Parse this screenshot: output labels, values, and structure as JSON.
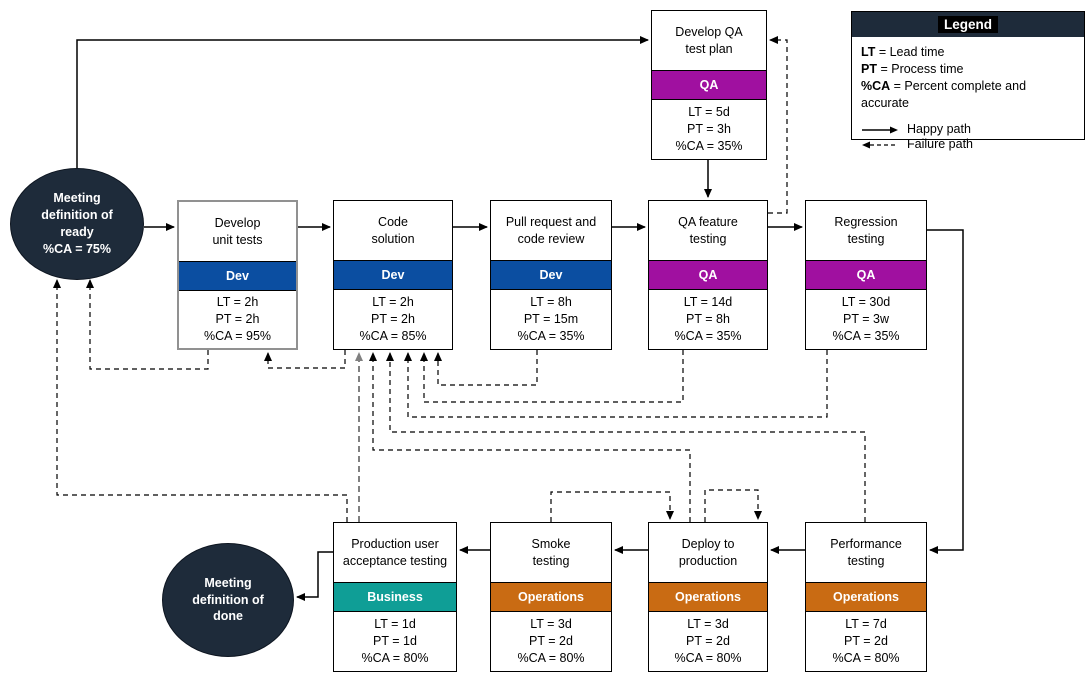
{
  "colors": {
    "dev": "#0B4EA1",
    "qa": "#A010A0",
    "operations": "#C96B13",
    "business": "#0F9E96",
    "navy": "#1E2B3A",
    "failure_gray": "#808080",
    "line_black": "#000000"
  },
  "legend": {
    "title": "Legend",
    "terms": [
      {
        "term": "LT",
        "def": " = Lead time"
      },
      {
        "term": "PT",
        "def": " = Process time"
      },
      {
        "term": "%CA",
        "def": " = Percent complete and accurate"
      }
    ],
    "paths": [
      {
        "label": "Happy path",
        "style": "solid"
      },
      {
        "label": "Failure path",
        "style": "dashed"
      }
    ]
  },
  "terminals": [
    {
      "id": "ready",
      "lines": [
        "Meeting definition of ready",
        "%CA = 75%"
      ]
    },
    {
      "id": "done",
      "lines": [
        "Meeting definition of done"
      ]
    }
  ],
  "processes": [
    {
      "id": "qa-test-plan",
      "title": "Develop QA\ntest plan",
      "team": "QA",
      "team_color": "qa",
      "stats": [
        "LT = 5d",
        "PT = 3h",
        "%CA = 35%"
      ]
    },
    {
      "id": "unit-tests",
      "title": "Develop\nunit tests",
      "team": "Dev",
      "team_color": "dev",
      "stats": [
        "LT = 2h",
        "PT = 2h",
        "%CA = 95%"
      ]
    },
    {
      "id": "code-solution",
      "title": "Code\nsolution",
      "team": "Dev",
      "team_color": "dev",
      "stats": [
        "LT = 2h",
        "PT = 2h",
        "%CA = 85%"
      ]
    },
    {
      "id": "pull-request",
      "title": "Pull request and\ncode review",
      "team": "Dev",
      "team_color": "dev",
      "stats": [
        "LT = 8h",
        "PT = 15m",
        "%CA = 35%"
      ]
    },
    {
      "id": "qa-feature",
      "title": "QA feature\ntesting",
      "team": "QA",
      "team_color": "qa",
      "stats": [
        "LT = 14d",
        "PT = 8h",
        "%CA = 35%"
      ]
    },
    {
      "id": "regression",
      "title": "Regression\ntesting",
      "team": "QA",
      "team_color": "qa",
      "stats": [
        "LT = 30d",
        "PT = 3w",
        "%CA = 35%"
      ]
    },
    {
      "id": "uat",
      "title": "Production user\nacceptance testing",
      "team": "Business",
      "team_color": "business",
      "stats": [
        "LT = 1d",
        "PT = 1d",
        "%CA = 80%"
      ]
    },
    {
      "id": "smoke",
      "title": "Smoke\ntesting",
      "team": "Operations",
      "team_color": "operations",
      "stats": [
        "LT = 3d",
        "PT = 2d",
        "%CA = 80%"
      ]
    },
    {
      "id": "deploy",
      "title": "Deploy to\nproduction",
      "team": "Operations",
      "team_color": "operations",
      "stats": [
        "LT = 3d",
        "PT = 2d",
        "%CA = 80%"
      ]
    },
    {
      "id": "performance",
      "title": "Performance\ntesting",
      "team": "Operations",
      "team_color": "operations",
      "stats": [
        "LT = 7d",
        "PT = 2d",
        "%CA = 80%"
      ]
    }
  ],
  "edges": [
    {
      "id": "h_ready_unit",
      "from": "ready",
      "to": "unit-tests",
      "type": "happy"
    },
    {
      "id": "h_unit_code",
      "from": "unit-tests",
      "to": "code-solution",
      "type": "happy"
    },
    {
      "id": "h_code_pr",
      "from": "code-solution",
      "to": "pull-request",
      "type": "happy"
    },
    {
      "id": "h_pr_qaf",
      "from": "pull-request",
      "to": "qa-feature",
      "type": "happy"
    },
    {
      "id": "h_qaf_reg",
      "from": "qa-feature",
      "to": "regression",
      "type": "happy"
    },
    {
      "id": "h_reg_perf",
      "from": "regression",
      "to": "performance",
      "type": "happy"
    },
    {
      "id": "h_perf_deploy",
      "from": "performance",
      "to": "deploy",
      "type": "happy"
    },
    {
      "id": "h_deploy_smoke",
      "from": "deploy",
      "to": "smoke",
      "type": "happy"
    },
    {
      "id": "h_smoke_uat",
      "from": "smoke",
      "to": "uat",
      "type": "happy"
    },
    {
      "id": "h_uat_done",
      "from": "uat",
      "to": "done",
      "type": "happy"
    },
    {
      "id": "h_ready_qaplan",
      "from": "ready",
      "to": "qa-test-plan",
      "type": "happy"
    },
    {
      "id": "h_qaplan_qaf",
      "from": "qa-test-plan",
      "to": "qa-feature",
      "type": "happy"
    },
    {
      "id": "f_qaf_qaplan",
      "from": "qa-feature",
      "to": "qa-test-plan",
      "type": "failure"
    },
    {
      "id": "f_unit_ready",
      "from": "unit-tests",
      "to": "ready",
      "type": "failure"
    },
    {
      "id": "f_code_unit",
      "from": "code-solution",
      "to": "unit-tests",
      "type": "failure"
    },
    {
      "id": "f_pr_code",
      "from": "pull-request",
      "to": "code-solution",
      "type": "failure"
    },
    {
      "id": "f_qaf_code",
      "from": "qa-feature",
      "to": "code-solution",
      "type": "failure"
    },
    {
      "id": "f_reg_code",
      "from": "regression",
      "to": "code-solution",
      "type": "failure"
    },
    {
      "id": "f_perf_code",
      "from": "performance",
      "to": "code-solution",
      "type": "failure"
    },
    {
      "id": "f_deploy_code",
      "from": "deploy",
      "to": "code-solution",
      "type": "failure"
    },
    {
      "id": "f_uat_code",
      "from": "uat",
      "to": "code-solution",
      "type": "failure",
      "variant": "gray"
    },
    {
      "id": "f_uat_ready",
      "from": "uat",
      "to": "ready",
      "type": "failure"
    },
    {
      "id": "f_smoke_deploy",
      "from": "smoke",
      "to": "deploy",
      "type": "failure"
    },
    {
      "id": "f_deploy_deploy",
      "from": "deploy",
      "to": "deploy",
      "type": "failure"
    }
  ]
}
